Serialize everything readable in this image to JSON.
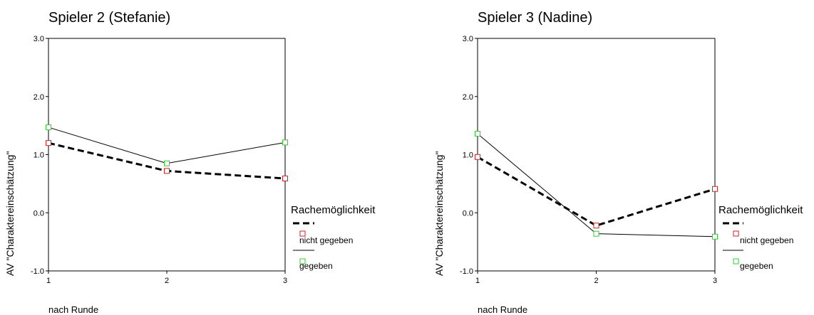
{
  "chart_data": [
    {
      "type": "line",
      "title": "Spieler 2 (Stefanie)",
      "xlabel": "nach Runde",
      "ylabel": "AV \"Charaktereinschätzung\"",
      "x": [
        1,
        2,
        3
      ],
      "xticks": [
        "1",
        "2",
        "3"
      ],
      "ylim": [
        -1.0,
        3.0
      ],
      "yticks": [
        "3.0",
        "2.0",
        "1.0",
        "0.0",
        "-1.0"
      ],
      "ytick_values": [
        3,
        2,
        1,
        0,
        -1
      ],
      "legend_title": "Rachemöglichkeit",
      "series": [
        {
          "name": "nicht gegeben",
          "values": [
            1.2,
            0.72,
            0.59
          ],
          "color": "#cc2222",
          "style": "dashed"
        },
        {
          "name": "gegeben",
          "values": [
            1.47,
            0.85,
            1.21
          ],
          "color": "#33cc33",
          "style": "solid"
        }
      ]
    },
    {
      "type": "line",
      "title": "Spieler 3 (Nadine)",
      "xlabel": "nach Runde",
      "ylabel": "AV \"Charaktereinschätzung\"",
      "x": [
        1,
        2,
        3
      ],
      "xticks": [
        "1",
        "2",
        "3"
      ],
      "ylim": [
        -1.0,
        3.0
      ],
      "yticks": [
        "3.0",
        "2.0",
        "1.0",
        "0.0",
        "-1.0"
      ],
      "ytick_values": [
        3,
        2,
        1,
        0,
        -1
      ],
      "legend_title": "Rachemöglichkeit",
      "series": [
        {
          "name": "nicht gegeben",
          "values": [
            0.96,
            -0.22,
            0.41
          ],
          "color": "#cc2222",
          "style": "dashed"
        },
        {
          "name": "gegeben",
          "values": [
            1.36,
            -0.36,
            -0.41
          ],
          "color": "#33cc33",
          "style": "solid"
        }
      ]
    }
  ]
}
